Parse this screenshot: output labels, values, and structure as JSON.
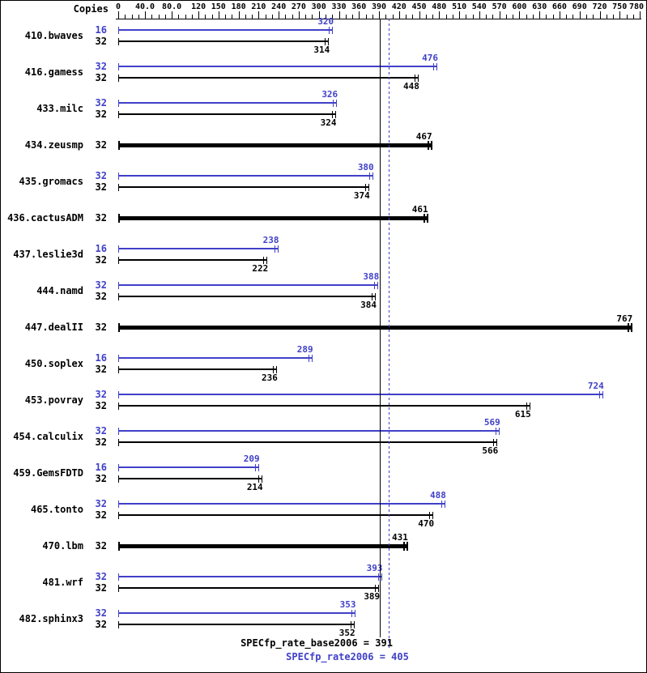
{
  "header": {
    "copies_label": "Copies"
  },
  "footer": {
    "base_label": "SPECfp_rate_base2006 = 391",
    "peak_label": "SPECfp_rate2006 = 405"
  },
  "colors": {
    "peak": "#4040c8",
    "base": "#000000"
  },
  "chart_data": {
    "type": "bar",
    "orientation": "horizontal",
    "title": "",
    "xlabel": "Copies",
    "xlim": [
      0,
      780
    ],
    "minor_tick_step": 10,
    "x_ticks": [
      0,
      40,
      80,
      120,
      150,
      180,
      210,
      240,
      270,
      300,
      330,
      360,
      390,
      420,
      450,
      480,
      510,
      540,
      570,
      600,
      630,
      660,
      690,
      720,
      750,
      780
    ],
    "x_tick_labels": [
      "0",
      "40.0",
      "80.0",
      "120",
      "150",
      "180",
      "210",
      "240",
      "270",
      "300",
      "330",
      "360",
      "390",
      "420",
      "450",
      "480",
      "510",
      "540",
      "570",
      "600",
      "630",
      "660",
      "690",
      "720",
      "750",
      "780"
    ],
    "series_legend": [
      {
        "name": "peak",
        "color": "#4040c8"
      },
      {
        "name": "base",
        "color": "#000000"
      }
    ],
    "benchmarks": [
      {
        "name": "410.bwaves",
        "bars": [
          {
            "copies": 16,
            "value": 320,
            "series": "peak"
          },
          {
            "copies": 32,
            "value": 314,
            "series": "base"
          }
        ]
      },
      {
        "name": "416.gamess",
        "bars": [
          {
            "copies": 32,
            "value": 476,
            "series": "peak"
          },
          {
            "copies": 32,
            "value": 448,
            "series": "base"
          }
        ]
      },
      {
        "name": "433.milc",
        "bars": [
          {
            "copies": 32,
            "value": 326,
            "series": "peak"
          },
          {
            "copies": 32,
            "value": 324,
            "series": "base"
          }
        ]
      },
      {
        "name": "434.zeusmp",
        "bars": [
          {
            "copies": 32,
            "value": 467,
            "series": "base-only"
          }
        ]
      },
      {
        "name": "435.gromacs",
        "bars": [
          {
            "copies": 32,
            "value": 380,
            "series": "peak"
          },
          {
            "copies": 32,
            "value": 374,
            "series": "base"
          }
        ]
      },
      {
        "name": "436.cactusADM",
        "bars": [
          {
            "copies": 32,
            "value": 461,
            "series": "base-only"
          }
        ]
      },
      {
        "name": "437.leslie3d",
        "bars": [
          {
            "copies": 16,
            "value": 238,
            "series": "peak"
          },
          {
            "copies": 32,
            "value": 222,
            "series": "base"
          }
        ]
      },
      {
        "name": "444.namd",
        "bars": [
          {
            "copies": 32,
            "value": 388,
            "series": "peak"
          },
          {
            "copies": 32,
            "value": 384,
            "series": "base"
          }
        ]
      },
      {
        "name": "447.dealII",
        "bars": [
          {
            "copies": 32,
            "value": 767,
            "series": "base-only"
          }
        ]
      },
      {
        "name": "450.soplex",
        "bars": [
          {
            "copies": 16,
            "value": 289,
            "series": "peak"
          },
          {
            "copies": 32,
            "value": 236,
            "series": "base"
          }
        ]
      },
      {
        "name": "453.povray",
        "bars": [
          {
            "copies": 32,
            "value": 724,
            "series": "peak"
          },
          {
            "copies": 32,
            "value": 615,
            "series": "base"
          }
        ]
      },
      {
        "name": "454.calculix",
        "bars": [
          {
            "copies": 32,
            "value": 569,
            "series": "peak"
          },
          {
            "copies": 32,
            "value": 566,
            "series": "base"
          }
        ]
      },
      {
        "name": "459.GemsFDTD",
        "bars": [
          {
            "copies": 16,
            "value": 209,
            "series": "peak"
          },
          {
            "copies": 32,
            "value": 214,
            "series": "base"
          }
        ]
      },
      {
        "name": "465.tonto",
        "bars": [
          {
            "copies": 32,
            "value": 488,
            "series": "peak"
          },
          {
            "copies": 32,
            "value": 470,
            "series": "base"
          }
        ]
      },
      {
        "name": "470.lbm",
        "bars": [
          {
            "copies": 32,
            "value": 431,
            "series": "base-only"
          }
        ]
      },
      {
        "name": "481.wrf",
        "bars": [
          {
            "copies": 32,
            "value": 393,
            "series": "peak"
          },
          {
            "copies": 32,
            "value": 389,
            "series": "base"
          }
        ]
      },
      {
        "name": "482.sphinx3",
        "bars": [
          {
            "copies": 32,
            "value": 353,
            "series": "peak"
          },
          {
            "copies": 32,
            "value": 352,
            "series": "base"
          }
        ]
      }
    ],
    "reference_lines": [
      {
        "value": 391,
        "style": "solid",
        "color": "#000000",
        "label": "SPECfp_rate_base2006 = 391"
      },
      {
        "value": 405,
        "style": "dotted",
        "color": "#4040c8",
        "label": "SPECfp_rate2006 = 405"
      }
    ]
  }
}
